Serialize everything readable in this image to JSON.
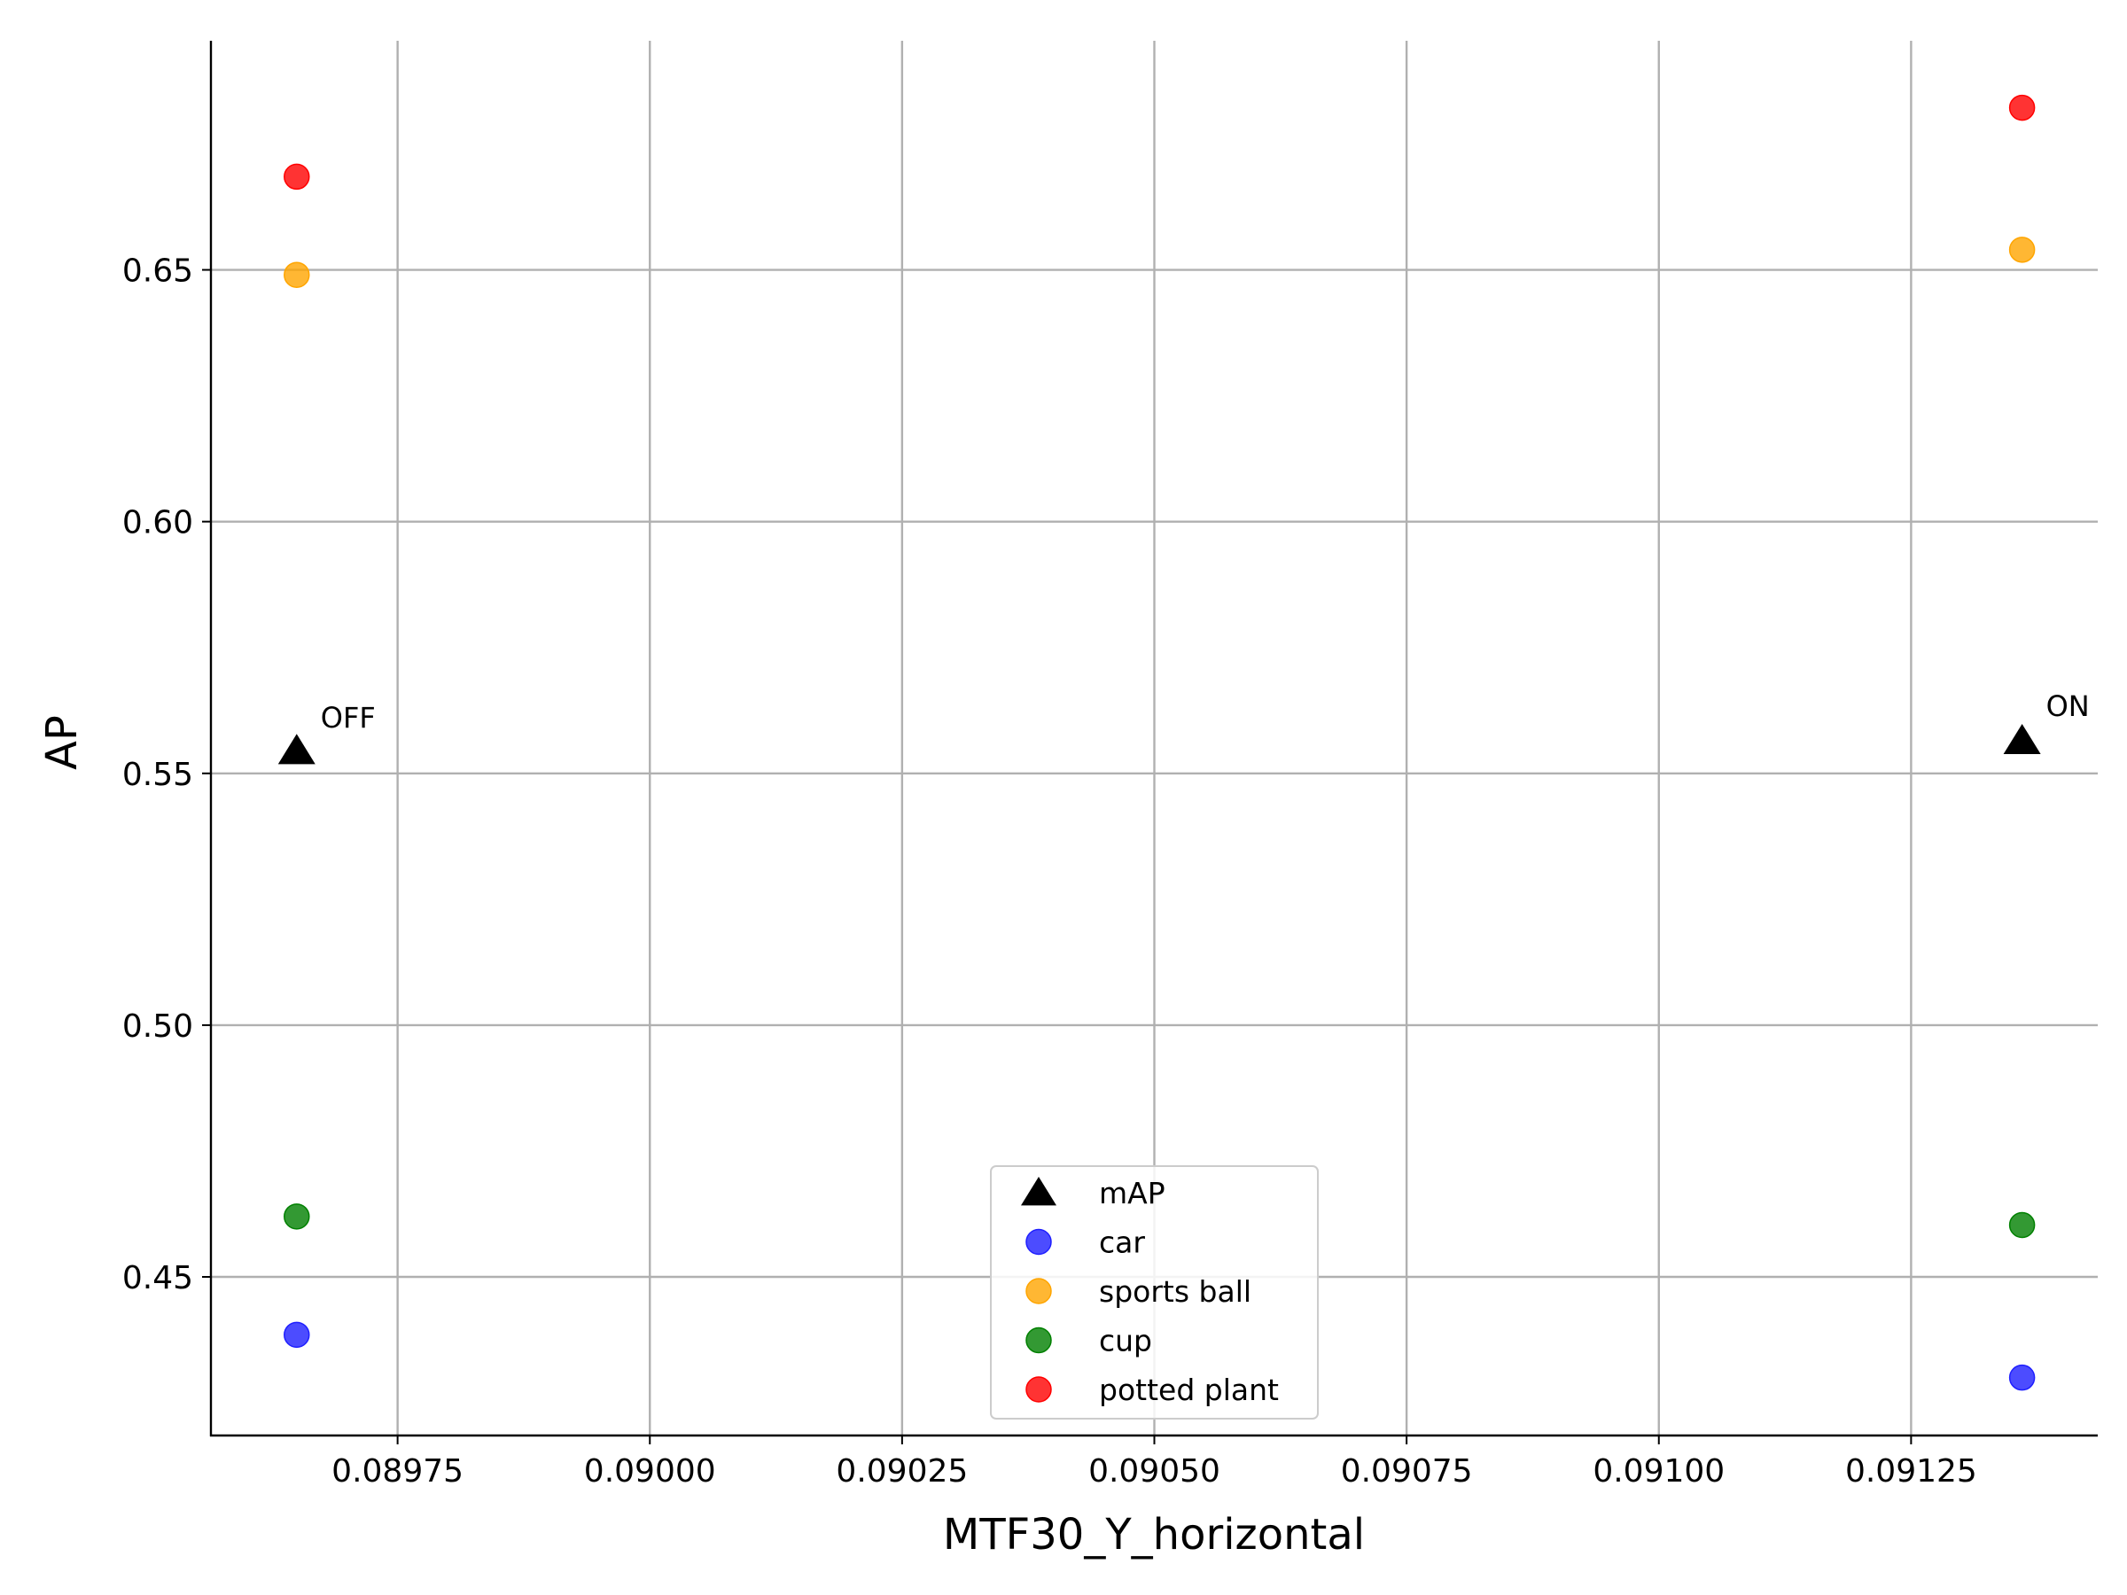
{
  "chart_data": {
    "type": "scatter",
    "title": "",
    "xlabel": "MTF30_Y_horizontal",
    "ylabel": "AP",
    "xlim": [
      0.089565,
      0.091435
    ],
    "ylim": [
      0.4185,
      0.6955
    ],
    "x_ticks": [
      0.08975,
      0.09,
      0.09025,
      0.0905,
      0.09075,
      0.091,
      0.09125
    ],
    "x_tick_labels": [
      "0.08975",
      "0.09000",
      "0.09025",
      "0.09050",
      "0.09075",
      "0.09100",
      "0.09125"
    ],
    "y_ticks": [
      0.45,
      0.5,
      0.55,
      0.6,
      0.65
    ],
    "y_tick_labels": [
      "0.45",
      "0.50",
      "0.55",
      "0.60",
      "0.65"
    ],
    "grid": true,
    "legend_position": "bottom-center",
    "series": [
      {
        "name": "mAP",
        "marker": "triangle",
        "color": "#000000",
        "points": [
          [
            0.08965,
            0.5545
          ],
          [
            0.09136,
            0.5565
          ]
        ]
      },
      {
        "name": "car",
        "marker": "circle",
        "color": "#1f1fff",
        "points": [
          [
            0.08965,
            0.4385
          ],
          [
            0.09136,
            0.43
          ]
        ]
      },
      {
        "name": "sports ball",
        "marker": "circle",
        "color": "#ffa500",
        "points": [
          [
            0.08965,
            0.649
          ],
          [
            0.09136,
            0.654
          ]
        ]
      },
      {
        "name": "cup",
        "marker": "circle",
        "color": "#008000",
        "points": [
          [
            0.08965,
            0.462
          ],
          [
            0.09136,
            0.4603
          ]
        ]
      },
      {
        "name": "potted plant",
        "marker": "circle",
        "color": "#ff0000",
        "points": [
          [
            0.08965,
            0.6685
          ],
          [
            0.09136,
            0.6822
          ]
        ]
      }
    ],
    "annotations": [
      {
        "text": "OFF",
        "x": 0.08965,
        "y": 0.5545
      },
      {
        "text": "ON",
        "x": 0.09136,
        "y": 0.5565
      }
    ]
  }
}
